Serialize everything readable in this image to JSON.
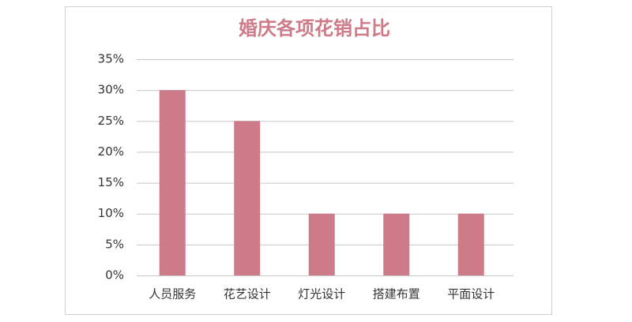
{
  "chart_data": {
    "type": "bar",
    "title": "婚庆各项花销占比",
    "categories": [
      "人员服务",
      "花艺设计",
      "灯光设计",
      "搭建布置",
      "平面设计"
    ],
    "values": [
      30,
      25,
      10,
      10,
      10
    ],
    "color": "#cd7b88",
    "ylim": [
      0,
      35
    ],
    "yticks": [
      {
        "value": 0,
        "label": "0%"
      },
      {
        "value": 5,
        "label": "5%"
      },
      {
        "value": 10,
        "label": "10%"
      },
      {
        "value": 15,
        "label": "15%"
      },
      {
        "value": 20,
        "label": "20%"
      },
      {
        "value": 25,
        "label": "25%"
      },
      {
        "value": 30,
        "label": "30%"
      },
      {
        "value": 35,
        "label": "35%"
      }
    ],
    "grid": true
  }
}
